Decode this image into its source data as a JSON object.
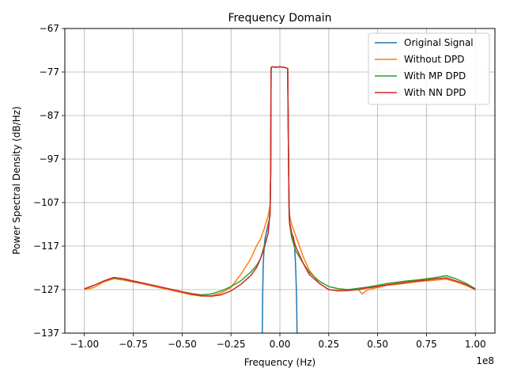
{
  "chart_data": {
    "type": "line",
    "title": "Frequency Domain",
    "xlabel": "Frequency (Hz)",
    "ylabel": "Power Spectral Density (dB/Hz)",
    "x_offset_label": "1e8",
    "xlim": [
      -1.1,
      1.1
    ],
    "ylim": [
      -137,
      -67
    ],
    "x_ticks": [
      -1.0,
      -0.75,
      -0.5,
      -0.25,
      0.0,
      0.25,
      0.5,
      0.75,
      1.0
    ],
    "x_tick_labels": [
      "−1.00",
      "−0.75",
      "−0.50",
      "−0.25",
      "0.00",
      "0.25",
      "0.50",
      "0.75",
      "1.00"
    ],
    "y_ticks": [
      -137,
      -127,
      -117,
      -107,
      -97,
      -87,
      -77,
      -67
    ],
    "y_tick_labels": [
      "−137",
      "−127",
      "−117",
      "−107",
      "−97",
      "−87",
      "−77",
      "−67"
    ],
    "grid": true,
    "legend_position": "top-right",
    "series": [
      {
        "name": "Original Signal",
        "color": "#1f77b4",
        "x": [
          -0.09,
          -0.088,
          -0.085,
          -0.08,
          -0.075,
          -0.07,
          -0.06,
          -0.05,
          -0.047,
          -0.045,
          -0.04,
          -0.02,
          0.0,
          0.02,
          0.04,
          0.045,
          0.047,
          0.05,
          0.06,
          0.07,
          0.075,
          0.08,
          0.085,
          0.088,
          0.09
        ],
        "y": [
          -137,
          -128,
          -121,
          -117,
          -115,
          -114,
          -112,
          -110,
          -100,
          -76,
          -75.8,
          -75.9,
          -75.8,
          -75.9,
          -76.2,
          -100,
          -110,
          -112,
          -114,
          -115,
          -117,
          -121,
          -128,
          -137,
          -137
        ]
      },
      {
        "name": "Without DPD",
        "color": "#ff7f0e",
        "x": [
          -1.0,
          -0.95,
          -0.9,
          -0.85,
          -0.8,
          -0.75,
          -0.7,
          -0.65,
          -0.6,
          -0.55,
          -0.5,
          -0.45,
          -0.4,
          -0.35,
          -0.3,
          -0.25,
          -0.2,
          -0.15,
          -0.12,
          -0.1,
          -0.08,
          -0.06,
          -0.05,
          -0.047,
          -0.045,
          -0.04,
          -0.02,
          0.0,
          0.02,
          0.04,
          0.045,
          0.047,
          0.05,
          0.06,
          0.08,
          0.1,
          0.12,
          0.15,
          0.2,
          0.25,
          0.3,
          0.35,
          0.4,
          0.42,
          0.45,
          0.5,
          0.55,
          0.6,
          0.65,
          0.7,
          0.75,
          0.8,
          0.85,
          0.9,
          0.95,
          1.0
        ],
        "y": [
          -127,
          -126.5,
          -125.2,
          -124.5,
          -124.8,
          -125.3,
          -125.7,
          -126.2,
          -126.7,
          -127.2,
          -127.7,
          -128.2,
          -128.5,
          -128.4,
          -127.8,
          -126.5,
          -123.5,
          -120,
          -117,
          -115.5,
          -113,
          -110,
          -107.5,
          -100,
          -76,
          -75.8,
          -75.9,
          -75.8,
          -75.9,
          -76.2,
          -100,
          -107.5,
          -110,
          -112,
          -114.5,
          -117,
          -119.5,
          -122.5,
          -125.5,
          -127,
          -127.2,
          -127,
          -126.8,
          -128,
          -127,
          -126.5,
          -126,
          -125.8,
          -125.5,
          -125.2,
          -125,
          -124.8,
          -124.6,
          -125.2,
          -126,
          -127
        ]
      },
      {
        "name": "With MP DPD",
        "color": "#2ca02c",
        "x": [
          -1.0,
          -0.95,
          -0.9,
          -0.85,
          -0.8,
          -0.75,
          -0.7,
          -0.65,
          -0.6,
          -0.55,
          -0.5,
          -0.45,
          -0.4,
          -0.35,
          -0.3,
          -0.25,
          -0.2,
          -0.15,
          -0.12,
          -0.1,
          -0.08,
          -0.06,
          -0.05,
          -0.047,
          -0.045,
          -0.04,
          -0.02,
          0.0,
          0.02,
          0.04,
          0.045,
          0.047,
          0.05,
          0.06,
          0.08,
          0.1,
          0.12,
          0.15,
          0.2,
          0.25,
          0.3,
          0.35,
          0.4,
          0.45,
          0.5,
          0.55,
          0.6,
          0.65,
          0.7,
          0.75,
          0.8,
          0.85,
          0.9,
          0.95,
          1.0
        ],
        "y": [
          -126.8,
          -126,
          -125,
          -124.3,
          -124.6,
          -125.1,
          -125.5,
          -126,
          -126.5,
          -127,
          -127.5,
          -127.9,
          -128.2,
          -128,
          -127.3,
          -126.3,
          -125,
          -123,
          -121.5,
          -120,
          -117,
          -114,
          -109,
          -100,
          -76,
          -75.8,
          -75.9,
          -75.8,
          -75.9,
          -76.2,
          -100,
          -108,
          -112,
          -115,
          -118,
          -119.5,
          -121,
          -123,
          -125,
          -126.3,
          -126.8,
          -127,
          -126.7,
          -126.4,
          -126,
          -125.6,
          -125.3,
          -125,
          -124.8,
          -124.5,
          -124.2,
          -123.8,
          -124.5,
          -125.5,
          -126.8
        ]
      },
      {
        "name": "With NN DPD",
        "color": "#d62728",
        "x": [
          -1.0,
          -0.95,
          -0.9,
          -0.85,
          -0.8,
          -0.75,
          -0.7,
          -0.65,
          -0.6,
          -0.55,
          -0.5,
          -0.45,
          -0.4,
          -0.35,
          -0.3,
          -0.25,
          -0.2,
          -0.15,
          -0.12,
          -0.1,
          -0.08,
          -0.06,
          -0.05,
          -0.047,
          -0.045,
          -0.04,
          -0.02,
          0.0,
          0.02,
          0.04,
          0.045,
          0.047,
          0.05,
          0.06,
          0.08,
          0.1,
          0.12,
          0.15,
          0.2,
          0.25,
          0.3,
          0.35,
          0.4,
          0.45,
          0.5,
          0.55,
          0.6,
          0.65,
          0.7,
          0.75,
          0.8,
          0.85,
          0.9,
          0.95,
          1.0
        ],
        "y": [
          -126.8,
          -126,
          -125,
          -124.2,
          -124.5,
          -125,
          -125.5,
          -126,
          -126.5,
          -127,
          -127.5,
          -128,
          -128.4,
          -128.5,
          -128.2,
          -127.3,
          -125.8,
          -123.8,
          -122,
          -120,
          -117.5,
          -114,
          -109,
          -100,
          -76,
          -75.8,
          -75.9,
          -75.8,
          -75.9,
          -76.2,
          -100,
          -108,
          -111.5,
          -114,
          -117,
          -119,
          -121,
          -123.5,
          -125.5,
          -127,
          -127.3,
          -127.2,
          -127,
          -126.6,
          -126.3,
          -125.9,
          -125.6,
          -125.3,
          -125,
          -124.8,
          -124.5,
          -124.3,
          -125,
          -125.8,
          -127
        ]
      }
    ]
  }
}
